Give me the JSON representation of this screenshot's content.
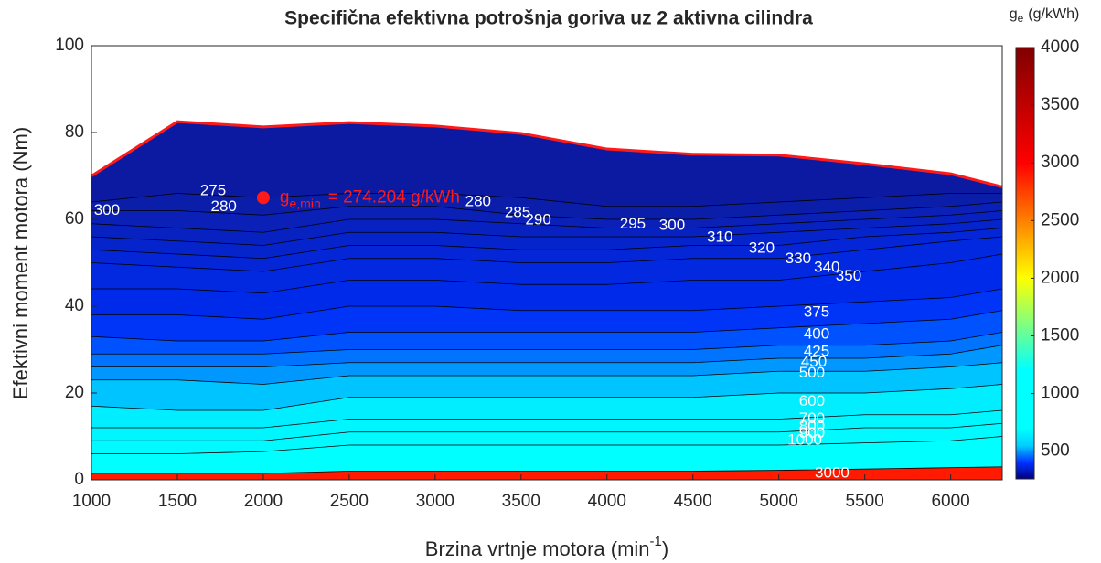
{
  "chart_data": {
    "type": "contour",
    "title": "Specifična efektivna potrošnja goriva uz 2 aktivna cilindra",
    "xlabel": {
      "text": "Brzina vrtnje motora (min",
      "superscript": "-1",
      "suffix": ")"
    },
    "ylabel": "Efektivni moment motora (Nm)",
    "xlim": [
      1000,
      6300
    ],
    "ylim": [
      0,
      100
    ],
    "xticks": [
      1000,
      1500,
      2000,
      2500,
      3000,
      3500,
      4000,
      4500,
      5000,
      5500,
      6000
    ],
    "yticks": [
      0,
      20,
      40,
      60,
      80,
      100
    ],
    "x": [
      1000,
      1500,
      2000,
      2500,
      3000,
      3500,
      4000,
      4500,
      5000,
      5500,
      6000,
      6300
    ],
    "boundary": {
      "color": "#ff1a1a",
      "top": [
        70,
        82.5,
        81.3,
        82.3,
        81.5,
        79.8,
        76.2,
        75,
        74.8,
        72.8,
        70.5,
        67.5
      ]
    },
    "base_color": "#0b1aa0",
    "levels": [
      {
        "level": 280,
        "color": "#0b1eaa",
        "values": [
          64,
          66,
          65,
          66,
          66,
          65,
          63,
          63,
          64,
          65,
          66,
          66
        ]
      },
      {
        "level": 290,
        "color": "#0a20b6",
        "values": [
          62,
          62,
          61,
          63,
          63,
          61,
          60,
          60,
          61,
          62,
          63,
          64
        ]
      },
      {
        "level": 300,
        "color": "#0822c2",
        "values": [
          59,
          58,
          57,
          60,
          60,
          59,
          58,
          58,
          59,
          60,
          61,
          62
        ]
      },
      {
        "level": 310,
        "color": "#0624cc",
        "values": [
          56,
          55,
          54,
          57,
          57,
          56,
          56,
          56,
          57,
          58,
          59,
          60
        ]
      },
      {
        "level": 320,
        "color": "#0426d6",
        "values": [
          53,
          52,
          51,
          54,
          54,
          53,
          53,
          54,
          54,
          56,
          57,
          58
        ]
      },
      {
        "level": 330,
        "color": "#0228e0",
        "values": [
          50,
          49,
          48,
          51,
          51,
          50,
          50,
          51,
          51,
          53,
          55,
          56
        ]
      },
      {
        "level": 350,
        "color": "#002aea",
        "values": [
          44,
          44,
          43,
          46,
          46,
          45,
          45,
          46,
          46,
          48,
          50,
          52
        ]
      },
      {
        "level": 375,
        "color": "#0034f6",
        "values": [
          38,
          38,
          37,
          40,
          40,
          39,
          39,
          39,
          40,
          41,
          42,
          44
        ]
      },
      {
        "level": 400,
        "color": "#0052ff",
        "values": [
          33,
          32,
          32,
          34,
          34,
          34,
          34,
          34,
          35,
          36,
          37,
          39
        ]
      },
      {
        "level": 425,
        "color": "#0074ff",
        "values": [
          29,
          29,
          29,
          30,
          30,
          30,
          30,
          30,
          31,
          31,
          32,
          34
        ]
      },
      {
        "level": 450,
        "color": "#0098ff",
        "values": [
          26,
          26,
          26,
          27,
          27,
          27,
          27,
          27,
          28,
          28,
          29,
          31
        ]
      },
      {
        "level": 500,
        "color": "#00c4ff",
        "values": [
          23,
          23,
          22,
          24,
          24,
          24,
          24,
          24,
          25,
          25,
          26,
          27
        ]
      },
      {
        "level": 600,
        "color": "#00eeff",
        "values": [
          17,
          16,
          16,
          19,
          19,
          19,
          19,
          19,
          20,
          20,
          21,
          22
        ]
      },
      {
        "level": 700,
        "color": "#00f6ff",
        "values": [
          12,
          12,
          12,
          14,
          14,
          14,
          14,
          14,
          14,
          15,
          15,
          16
        ]
      },
      {
        "level": 800,
        "color": "#00faff",
        "values": [
          9,
          9,
          9,
          11,
          11,
          11,
          11,
          11,
          11,
          12,
          12,
          13
        ]
      },
      {
        "level": 1000,
        "color": "#00ffff",
        "values": [
          6,
          6,
          6.5,
          8,
          8,
          8,
          8,
          8,
          8,
          8.5,
          9,
          10
        ]
      },
      {
        "level": 3000,
        "color": "#ff1a00",
        "values": [
          1.5,
          1.5,
          1.5,
          2,
          2,
          2,
          2,
          2,
          2.2,
          2.5,
          2.8,
          3
        ]
      }
    ],
    "contour_labels": [
      {
        "level": 300,
        "x": 1090,
        "y": 62
      },
      {
        "level": 275,
        "x": 1708,
        "y": 66.5
      },
      {
        "level": 280,
        "x": 1770,
        "y": 62.8
      },
      {
        "level": 280,
        "x": 3250,
        "y": 64
      },
      {
        "level": 285,
        "x": 3480,
        "y": 61.5
      },
      {
        "level": 290,
        "x": 3600,
        "y": 59.8
      },
      {
        "level": 295,
        "x": 4150,
        "y": 58.8
      },
      {
        "level": 300,
        "x": 4379,
        "y": 58.5
      },
      {
        "level": 310,
        "x": 4657,
        "y": 55.8
      },
      {
        "level": 320,
        "x": 4900,
        "y": 53.3
      },
      {
        "level": 330,
        "x": 5113,
        "y": 50.8
      },
      {
        "level": 340,
        "x": 5280,
        "y": 48.8
      },
      {
        "level": 350,
        "x": 5406,
        "y": 46.8
      },
      {
        "level": 375,
        "x": 5220,
        "y": 38.5
      },
      {
        "level": 400,
        "x": 5220,
        "y": 33.5
      },
      {
        "level": 425,
        "x": 5220,
        "y": 29.5
      },
      {
        "level": 450,
        "x": 5204,
        "y": 27
      },
      {
        "level": 500,
        "x": 5193,
        "y": 24.5
      },
      {
        "level": 600,
        "x": 5193,
        "y": 18
      },
      {
        "level": 700,
        "x": 5193,
        "y": 14
      },
      {
        "level": 800,
        "x": 5193,
        "y": 12.2
      },
      {
        "level": 900,
        "x": 5193,
        "y": 10.6
      },
      {
        "level": 1000,
        "x": 5151,
        "y": 9
      },
      {
        "level": 3000,
        "x": 5310,
        "y": 1.5
      }
    ],
    "minimum": {
      "x": 2000,
      "y": 65,
      "color": "#ff1a1a",
      "symbol": "g",
      "subscript": "e,min",
      "text": "= 274.204 g/kWh"
    },
    "colorbar": {
      "label": {
        "symbol": "g",
        "subscript": "e",
        "text": "(g/kWh)"
      },
      "clim": [
        260,
        4000
      ],
      "ticks": [
        500,
        1000,
        1500,
        2000,
        2500,
        3000,
        3500,
        4000
      ],
      "stops": [
        {
          "value": 260,
          "color": "#000080"
        },
        {
          "value": 400,
          "color": "#0030ff"
        },
        {
          "value": 550,
          "color": "#00d0ff"
        },
        {
          "value": 700,
          "color": "#00ffff"
        },
        {
          "value": 1200,
          "color": "#00ffff"
        },
        {
          "value": 1600,
          "color": "#80ff80"
        },
        {
          "value": 2000,
          "color": "#ffff00"
        },
        {
          "value": 2500,
          "color": "#ff8000"
        },
        {
          "value": 3000,
          "color": "#ff0000"
        },
        {
          "value": 4000,
          "color": "#800000"
        }
      ]
    }
  }
}
